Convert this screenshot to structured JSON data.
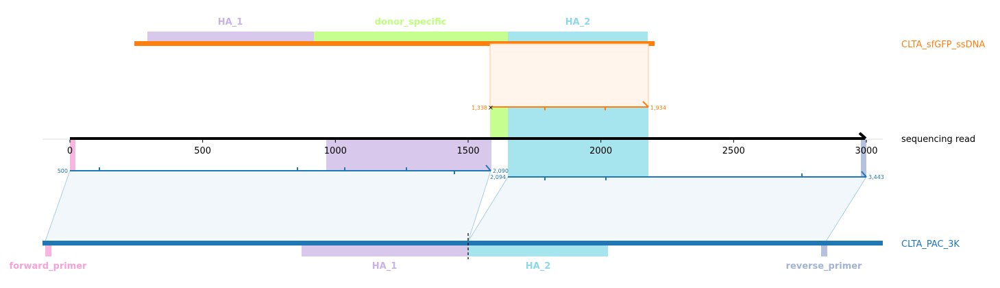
{
  "colors": {
    "ssdna": "#ff7f0e",
    "read": "#000000",
    "target": "#1f77b4",
    "ha1": "#c9b3e6",
    "ha2": "#8dd9e8",
    "donor_specific": "#bfff80",
    "forward_primer": "#f4a3d8",
    "reverse_primer": "#a2b3d6"
  },
  "references": {
    "top": {
      "name": "CLTA_sfGFP_ssDNA",
      "features": [
        {
          "label": "HA_1",
          "color": "#c9b3e6"
        },
        {
          "label": "donor_specific",
          "color": "#bfff80"
        },
        {
          "label": "HA_2",
          "color": "#8dd9e8"
        }
      ]
    },
    "bottom": {
      "name": "CLTA_PAC_3K",
      "features": [
        {
          "label": "forward_primer",
          "color": "#f4a3d8"
        },
        {
          "label": "HA_1",
          "color": "#c9b3e6"
        },
        {
          "label": "HA_2",
          "color": "#8dd9e8"
        },
        {
          "label": "reverse_primer",
          "color": "#a2b3d6"
        }
      ]
    }
  },
  "read": {
    "name": "sequencing read",
    "ticks": [
      "0",
      "500",
      "1000",
      "1500",
      "2000",
      "2500",
      "3000"
    ],
    "tick_values": [
      0,
      500,
      1000,
      1500,
      2000,
      2500,
      3000
    ]
  },
  "alignments": {
    "top": {
      "read_start": 1588,
      "read_end": 2182,
      "start_label": "1,338",
      "end_label": "1,934"
    },
    "bottom_left": {
      "read_start": 0,
      "read_end": 1588,
      "start_label": "500",
      "end_label": "2,090"
    },
    "bottom_right": {
      "read_start": 1650,
      "read_end": 3000,
      "start_label": "2,094",
      "end_label": "3,443"
    }
  }
}
